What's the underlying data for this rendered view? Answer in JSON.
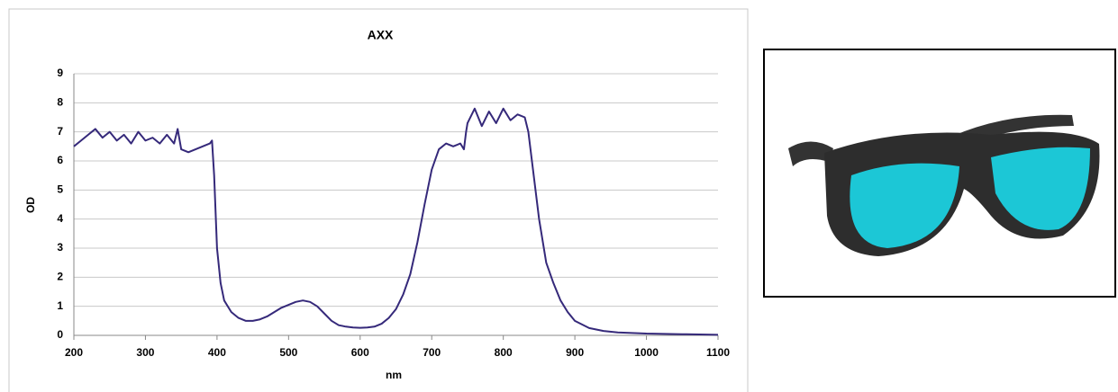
{
  "chart_data": {
    "type": "line",
    "title": "AXX",
    "x_label": "nm",
    "y_label": "OD",
    "xlim": [
      200,
      1100
    ],
    "xticks": [
      200,
      300,
      400,
      500,
      600,
      700,
      800,
      900,
      1000,
      1100
    ],
    "ylim": [
      0,
      9
    ],
    "yticks": [
      0,
      1,
      2,
      3,
      4,
      5,
      6,
      7,
      8,
      9
    ],
    "grid": true,
    "x": [
      200,
      210,
      220,
      230,
      240,
      250,
      260,
      270,
      280,
      290,
      300,
      310,
      320,
      330,
      340,
      345,
      350,
      360,
      370,
      380,
      390,
      393,
      396,
      400,
      405,
      410,
      420,
      430,
      440,
      450,
      460,
      470,
      480,
      490,
      500,
      510,
      520,
      530,
      540,
      550,
      560,
      570,
      580,
      590,
      600,
      610,
      620,
      630,
      640,
      650,
      660,
      670,
      680,
      690,
      700,
      710,
      720,
      730,
      740,
      745,
      748,
      750,
      760,
      770,
      780,
      790,
      800,
      810,
      820,
      830,
      835,
      840,
      850,
      860,
      870,
      880,
      890,
      900,
      920,
      940,
      960,
      980,
      1000,
      1050,
      1100
    ],
    "series": [
      {
        "color": "#35297a",
        "values": [
          6.5,
          6.7,
          6.9,
          7.1,
          6.8,
          7.0,
          6.7,
          6.9,
          6.6,
          7.0,
          6.7,
          6.8,
          6.6,
          6.9,
          6.6,
          7.1,
          6.4,
          6.3,
          6.4,
          6.5,
          6.6,
          6.7,
          5.5,
          3.0,
          1.8,
          1.2,
          0.8,
          0.6,
          0.5,
          0.5,
          0.55,
          0.65,
          0.8,
          0.95,
          1.05,
          1.15,
          1.2,
          1.15,
          1.0,
          0.75,
          0.5,
          0.35,
          0.3,
          0.27,
          0.26,
          0.27,
          0.3,
          0.4,
          0.6,
          0.9,
          1.4,
          2.1,
          3.2,
          4.5,
          5.7,
          6.4,
          6.6,
          6.5,
          6.6,
          6.4,
          7.0,
          7.3,
          7.8,
          7.2,
          7.7,
          7.3,
          7.8,
          7.4,
          7.6,
          7.5,
          7.0,
          6.0,
          4.0,
          2.5,
          1.8,
          1.2,
          0.8,
          0.5,
          0.25,
          0.15,
          0.1,
          0.08,
          0.06,
          0.04,
          0.02
        ]
      }
    ]
  }
}
